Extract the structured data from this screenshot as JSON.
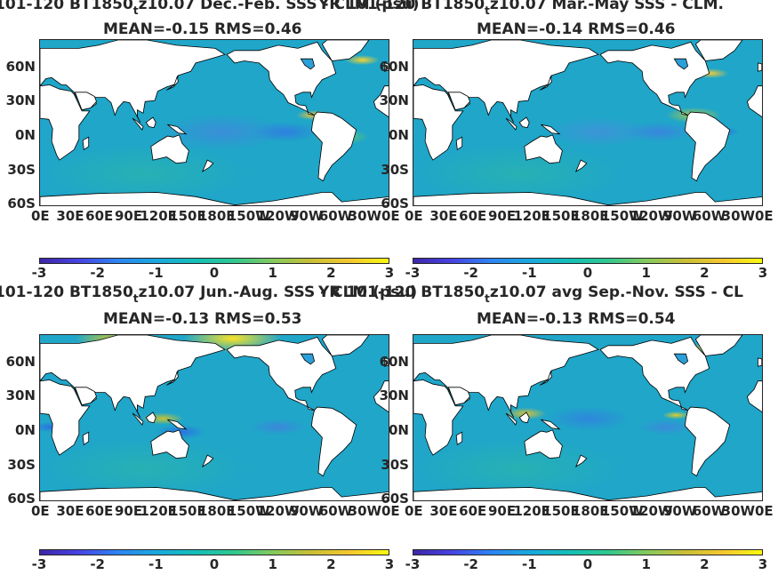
{
  "panels": [
    {
      "title_main": "101-120 BT1850",
      "title_sub": "t",
      "title_rest": "z10.07  Dec.-Feb. SSS - CLM (psu)",
      "stats": "MEAN=-0.15   RMS=0.46"
    },
    {
      "title_main": "YR 101-120 BT1850",
      "title_sub": "t",
      "title_rest": "z10.07 Mar.-May SSS - CLM.",
      "stats": "MEAN=-0.14   RMS=0.46"
    },
    {
      "title_main": "101-120 BT1850",
      "title_sub": "t",
      "title_rest": "z10.07 Jun.-Aug. SSS - CLM (psu)",
      "stats": "MEAN=-0.13   RMS=0.53"
    },
    {
      "title_main": "YR 101-120 BT1850",
      "title_sub": "t",
      "title_rest": "z10.07 avg Sep.-Nov. SSS - CL",
      "stats": "MEAN=-0.13   RMS=0.54"
    }
  ],
  "lat_labels": [
    "60N",
    "30N",
    "0N",
    "30S",
    "60S"
  ],
  "lon_labels": [
    "0E",
    "30E",
    "60E",
    "90E",
    "120E",
    "150E",
    "180E",
    "150W",
    "120W",
    "90W",
    "60W",
    "30W",
    "0E"
  ],
  "colorbar_ticks": [
    "-3",
    "-2",
    "-1",
    "0",
    "1",
    "2",
    "3"
  ],
  "colorbar_range": [
    -3,
    3
  ],
  "colormap": "parula",
  "colors": {
    "ocean_base": "#1fa6c9",
    "land": "#ffffff",
    "coast": "#000000"
  }
}
